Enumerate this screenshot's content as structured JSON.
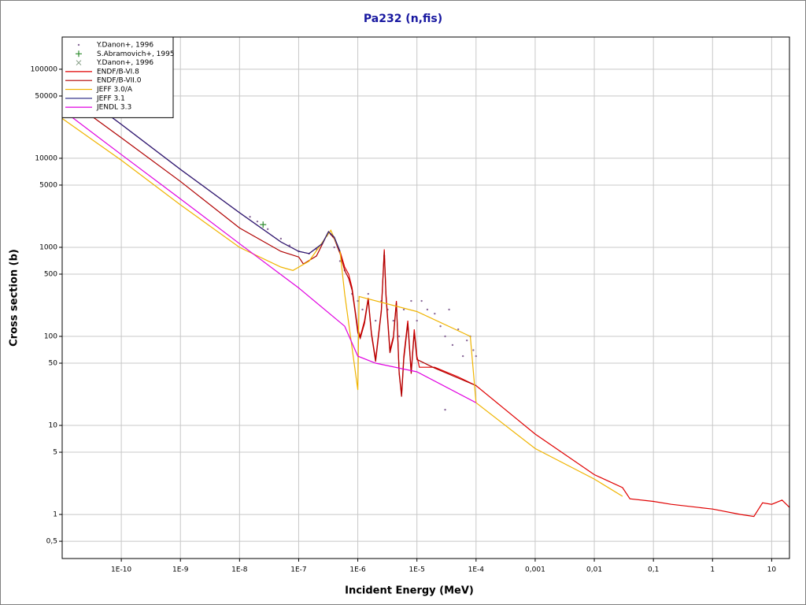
{
  "chart_data": {
    "type": "line",
    "title": "Pa232 (n,fis)",
    "x_label": "Incident Energy (MeV)",
    "y_label": "Cross section (b)",
    "log_x": true,
    "log_y": true,
    "grid": true,
    "legend": "upper left",
    "xlim": [
      1e-11,
      20
    ],
    "ylim": [
      0.32,
      230000
    ],
    "xticks": [
      {
        "value": 1e-10,
        "label": "1E-10"
      },
      {
        "value": 1e-09,
        "label": "1E-9"
      },
      {
        "value": 1e-08,
        "label": "1E-8"
      },
      {
        "value": 1e-07,
        "label": "1E-7"
      },
      {
        "value": 1e-06,
        "label": "1E-6"
      },
      {
        "value": 1e-05,
        "label": "1E-5"
      },
      {
        "value": 0.0001,
        "label": "1E-4"
      },
      {
        "value": 0.001,
        "label": "0,001"
      },
      {
        "value": 0.01,
        "label": "0,01"
      },
      {
        "value": 0.1,
        "label": "0,1"
      },
      1,
      10
    ],
    "yticks": [
      {
        "value": 0.5,
        "label": "0,5"
      },
      1,
      5,
      10,
      50,
      100,
      500,
      1000,
      5000,
      10000,
      50000,
      100000
    ],
    "series": [
      {
        "name": "Y.Danon+, 1996",
        "kind": "scatter",
        "marker": "dot",
        "color": "#8a6a9a",
        "x": [
          1.5e-08,
          2e-08,
          3e-08,
          5e-08,
          7e-08,
          1e-07,
          1.5e-07,
          2e-07,
          2.5e-07,
          3e-07,
          3.5e-07,
          4e-07,
          5e-07,
          6e-07,
          8e-07,
          1e-06,
          1.2e-06,
          1.5e-06,
          2e-06,
          2.5e-06,
          2.8e-06,
          3.2e-06,
          4e-06,
          5e-06,
          6e-06,
          7e-06,
          8e-06,
          1e-05,
          1.2e-05,
          1.5e-05,
          2e-05,
          2.5e-05,
          3e-05,
          3.5e-05,
          4e-05,
          5e-05,
          6e-05,
          7e-05,
          8e-05,
          9e-05,
          0.0001,
          3e-05
        ],
        "values": [
          2200,
          1950,
          1600,
          1250,
          1050,
          900,
          850,
          950,
          1100,
          1350,
          1400,
          1000,
          700,
          550,
          300,
          250,
          200,
          300,
          150,
          250,
          800,
          200,
          150,
          100,
          200,
          120,
          250,
          150,
          250,
          200,
          180,
          130,
          100,
          200,
          80,
          120,
          60,
          90,
          100,
          70,
          60,
          15
        ]
      },
      {
        "name": "S.Abramovich+, 1995",
        "kind": "scatter",
        "marker": "plus",
        "color": "#2e8b2e",
        "x": [
          2.5e-08
        ],
        "values": [
          1800
        ]
      },
      {
        "name": "Y.Danon+, 1996",
        "kind": "scatter",
        "marker": "cross",
        "color": "#8aa08a",
        "x": [],
        "values": []
      },
      {
        "name": "ENDF/B-VI.8",
        "kind": "line",
        "color": "#e00000",
        "x": [
          1e-11,
          1e-10,
          1e-09,
          1e-08,
          5e-08,
          1e-07,
          1.5e-07,
          2.5e-07,
          3.2e-07,
          4e-07,
          5e-07,
          6e-07,
          7e-07,
          8e-07,
          9e-07,
          1e-06,
          1.1e-06,
          1.3e-06,
          1.5e-06,
          1.7e-06,
          2e-06,
          2.5e-06,
          2.8e-06,
          3e-06,
          3.5e-06,
          4e-06,
          4.5e-06,
          5e-06,
          5.5e-06,
          6e-06,
          7e-06,
          8e-06,
          9e-06,
          1e-05,
          1.1e-05,
          2e-05,
          5e-05,
          0.0001,
          0.001,
          0.01,
          0.03,
          0.04,
          0.1,
          0.2,
          1,
          3,
          5,
          7,
          10,
          15,
          20
        ],
        "values": [
          75000,
          24000,
          7500,
          2450,
          1150,
          900,
          850,
          1100,
          1500,
          1300,
          900,
          600,
          500,
          350,
          200,
          120,
          100,
          150,
          270,
          110,
          55,
          200,
          950,
          300,
          70,
          100,
          250,
          40,
          22,
          60,
          150,
          40,
          120,
          60,
          45,
          45,
          35,
          28,
          8,
          2.8,
          2,
          1.5,
          1.4,
          1.3,
          1.15,
          1.0,
          0.95,
          1.35,
          1.3,
          1.45,
          1.2
        ]
      },
      {
        "name": "ENDF/B-VII.0",
        "kind": "line",
        "color": "#b00000",
        "x": [
          1e-11,
          1e-10,
          1e-09,
          1e-08,
          5e-08,
          1e-07,
          1.2e-07,
          2e-07,
          3.2e-07,
          4e-07,
          5e-07,
          6e-07,
          7e-07,
          8e-07,
          9e-07,
          1e-06,
          1.1e-06,
          1.3e-06,
          1.5e-06,
          1.7e-06,
          2e-06,
          2.5e-06,
          2.8e-06,
          3e-06,
          3.5e-06,
          4e-06,
          4.5e-06,
          5e-06,
          5.5e-06,
          6e-06,
          7e-06,
          8e-06,
          9e-06,
          1e-05,
          2e-05,
          5e-05,
          0.0001
        ],
        "values": [
          52000,
          17000,
          5500,
          1650,
          900,
          780,
          650,
          800,
          1500,
          1250,
          850,
          550,
          450,
          330,
          190,
          110,
          95,
          140,
          260,
          105,
          52,
          190,
          900,
          280,
          65,
          95,
          240,
          38,
          21,
          55,
          140,
          38,
          110,
          55,
          44,
          34,
          28
        ]
      },
      {
        "name": "JEFF 3.0/A",
        "kind": "line",
        "color": "#f0b400",
        "x": [
          1e-11,
          1e-10,
          1e-09,
          1e-08,
          5e-08,
          8e-08,
          1.5e-07,
          3.5e-07,
          5e-07,
          6e-07,
          1e-06,
          1.05e-06,
          1e-05,
          8e-05,
          0.0001,
          0.001,
          0.01,
          0.03
        ],
        "values": [
          28000,
          9500,
          3000,
          1000,
          600,
          550,
          700,
          1550,
          900,
          300,
          25,
          280,
          190,
          100,
          18,
          5.5,
          2.5,
          1.6
        ]
      },
      {
        "name": "JEFF 3.1",
        "kind": "line",
        "color": "#202080",
        "x": [
          1e-11,
          1e-10,
          1e-09,
          1e-08,
          5e-08,
          1e-07,
          1.5e-07,
          2.5e-07,
          3.2e-07,
          4e-07,
          5e-07
        ],
        "values": [
          75000,
          24000,
          7500,
          2450,
          1150,
          900,
          850,
          1100,
          1500,
          1300,
          900
        ]
      },
      {
        "name": "JENDL 3.3",
        "kind": "line",
        "color": "#e000e0",
        "x": [
          1e-11,
          1e-10,
          1e-09,
          1e-08,
          1e-07,
          6e-07,
          1e-06,
          2e-06,
          1e-05,
          0.0001
        ],
        "values": [
          35000,
          11000,
          3500,
          1100,
          350,
          130,
          60,
          50,
          40,
          18
        ]
      }
    ]
  }
}
